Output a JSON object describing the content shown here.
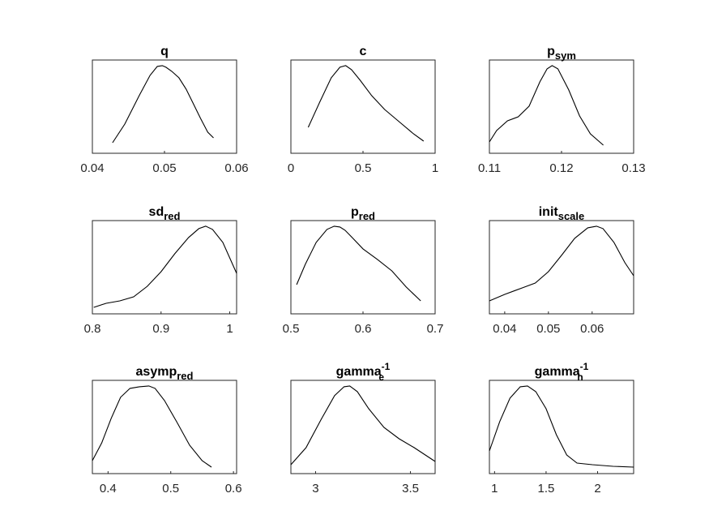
{
  "chart_data": [
    {
      "type": "line",
      "title": "q",
      "title_sub": "",
      "title_sup": "",
      "xlim": [
        0.04,
        0.06
      ],
      "xticks": [
        0.04,
        0.05,
        0.06
      ],
      "xtick_labels": [
        "0.04",
        "0.05",
        "0.06"
      ],
      "x": [
        0.0428,
        0.0445,
        0.0465,
        0.048,
        0.049,
        0.0497,
        0.0502,
        0.051,
        0.052,
        0.053,
        0.054,
        0.055,
        0.056,
        0.0568
      ],
      "y": [
        0.05,
        0.28,
        0.63,
        0.88,
        0.99,
        1.0,
        0.98,
        0.93,
        0.85,
        0.71,
        0.53,
        0.35,
        0.18,
        0.11
      ]
    },
    {
      "type": "line",
      "title": "c",
      "title_sub": "",
      "title_sup": "",
      "xlim": [
        0,
        1
      ],
      "xticks": [
        0,
        0.5,
        1
      ],
      "xtick_labels": [
        "0",
        "0.5",
        "1"
      ],
      "x": [
        0.12,
        0.2,
        0.28,
        0.34,
        0.38,
        0.42,
        0.48,
        0.56,
        0.65,
        0.75,
        0.85,
        0.92
      ],
      "y": [
        0.24,
        0.55,
        0.85,
        0.98,
        1.0,
        0.95,
        0.82,
        0.63,
        0.46,
        0.31,
        0.16,
        0.07
      ]
    },
    {
      "type": "line",
      "title": "p",
      "title_sub": "sym",
      "title_sup": "",
      "xlim": [
        0.11,
        0.13
      ],
      "xticks": [
        0.11,
        0.12,
        0.13
      ],
      "xtick_labels": [
        "0.11",
        "0.12",
        "0.13"
      ],
      "x": [
        0.11,
        0.111,
        0.1125,
        0.114,
        0.1155,
        0.117,
        0.118,
        0.1187,
        0.1195,
        0.121,
        0.1225,
        0.124,
        0.1258
      ],
      "y": [
        0.06,
        0.2,
        0.32,
        0.37,
        0.5,
        0.8,
        0.96,
        1.0,
        0.96,
        0.7,
        0.38,
        0.16,
        0.02
      ]
    },
    {
      "type": "line",
      "title": "sd",
      "title_sub": "red",
      "title_sup": "",
      "xlim": [
        0.8,
        1.01
      ],
      "xticks": [
        0.8,
        0.9,
        1
      ],
      "xtick_labels": [
        "0.8",
        "0.9",
        "1"
      ],
      "x": [
        0.802,
        0.82,
        0.84,
        0.86,
        0.88,
        0.9,
        0.92,
        0.94,
        0.955,
        0.965,
        0.975,
        0.99,
        1.01
      ],
      "y": [
        0.0,
        0.05,
        0.08,
        0.13,
        0.26,
        0.44,
        0.66,
        0.86,
        0.97,
        1.0,
        0.96,
        0.8,
        0.42
      ]
    },
    {
      "type": "line",
      "title": "p",
      "title_sub": "red",
      "title_sup": "",
      "xlim": [
        0.5,
        0.7
      ],
      "xticks": [
        0.5,
        0.6,
        0.7
      ],
      "xtick_labels": [
        "0.5",
        "0.6",
        "0.7"
      ],
      "x": [
        0.508,
        0.52,
        0.535,
        0.55,
        0.56,
        0.568,
        0.575,
        0.585,
        0.6,
        0.62,
        0.64,
        0.66,
        0.68
      ],
      "y": [
        0.28,
        0.53,
        0.8,
        0.96,
        1.0,
        0.99,
        0.95,
        0.86,
        0.72,
        0.59,
        0.45,
        0.25,
        0.08
      ]
    },
    {
      "type": "line",
      "title": "init",
      "title_sub": "scale",
      "title_sup": "",
      "xlim": [
        0.0365,
        0.0695
      ],
      "xticks": [
        0.04,
        0.05,
        0.06
      ],
      "xtick_labels": [
        "0.04",
        "0.05",
        "0.06"
      ],
      "x": [
        0.0365,
        0.04,
        0.044,
        0.047,
        0.05,
        0.053,
        0.056,
        0.059,
        0.061,
        0.0625,
        0.065,
        0.0675,
        0.0695
      ],
      "y": [
        0.08,
        0.16,
        0.24,
        0.3,
        0.44,
        0.64,
        0.85,
        0.98,
        1.0,
        0.97,
        0.8,
        0.55,
        0.39
      ]
    },
    {
      "type": "line",
      "title": "asymp",
      "title_sub": "red",
      "title_sup": "",
      "xlim": [
        0.375,
        0.605
      ],
      "xticks": [
        0.4,
        0.5,
        0.6
      ],
      "xtick_labels": [
        "0.4",
        "0.5",
        "0.6"
      ],
      "x": [
        0.375,
        0.39,
        0.405,
        0.42,
        0.435,
        0.45,
        0.465,
        0.475,
        0.49,
        0.51,
        0.53,
        0.55,
        0.565
      ],
      "y": [
        0.08,
        0.3,
        0.6,
        0.86,
        0.97,
        0.99,
        1.0,
        0.97,
        0.82,
        0.55,
        0.27,
        0.08,
        0.0
      ]
    },
    {
      "type": "line",
      "title": "gamma",
      "title_sub": "e",
      "title_sup": "-1",
      "xlim": [
        2.87,
        3.63
      ],
      "xticks": [
        3,
        3.5
      ],
      "xtick_labels": [
        "3",
        "3.5"
      ],
      "x": [
        2.87,
        2.95,
        3.03,
        3.1,
        3.15,
        3.18,
        3.22,
        3.28,
        3.36,
        3.44,
        3.52,
        3.63
      ],
      "y": [
        0.03,
        0.24,
        0.59,
        0.88,
        0.99,
        1.0,
        0.93,
        0.72,
        0.49,
        0.35,
        0.24,
        0.07
      ]
    },
    {
      "type": "line",
      "title": "gamma",
      "title_sub": "h",
      "title_sup": "-1",
      "xlim": [
        0.95,
        2.35
      ],
      "xticks": [
        1,
        1.5,
        2
      ],
      "xtick_labels": [
        "1",
        "1.5",
        "2"
      ],
      "x": [
        0.95,
        1.05,
        1.15,
        1.25,
        1.32,
        1.4,
        1.5,
        1.6,
        1.7,
        1.8,
        1.95,
        2.15,
        2.35
      ],
      "y": [
        0.2,
        0.56,
        0.85,
        0.99,
        1.0,
        0.93,
        0.72,
        0.4,
        0.15,
        0.05,
        0.03,
        0.01,
        0.0
      ]
    }
  ]
}
